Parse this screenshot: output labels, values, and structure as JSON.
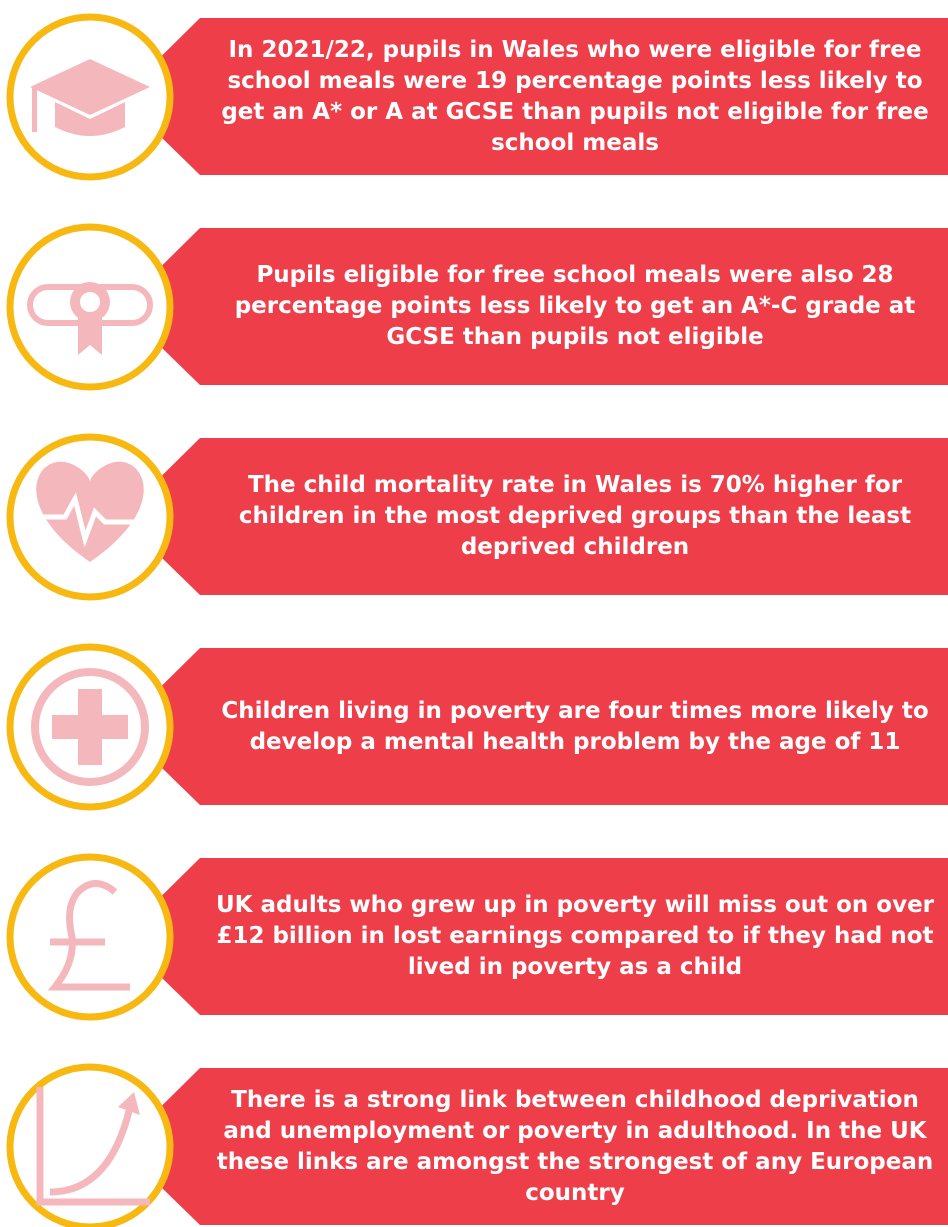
{
  "items": [
    {
      "text": "In 2021/22, pupils in Wales who were eligible for free school meals were 19 percentage points less likely to get an A* or A at GCSE than pupils not eligible for free school meals"
    },
    {
      "text": "Pupils eligible for free school meals were also 28 percentage points less likely to get an A*-C grade at GCSE than pupils not eligible"
    },
    {
      "text": "The child mortality rate in Wales is 70% higher for children in the most deprived groups than the least deprived children"
    },
    {
      "text": "Children living in poverty are four times more likely to develop a mental health problem by the age of 11"
    },
    {
      "text": "UK adults who grew up in poverty will miss out on over £12 billion in lost earnings compared to if they had not lived in poverty as a child"
    },
    {
      "text": "There is a strong link between childhood deprivation and unemployment or poverty in adulthood. In the UK these links are amongst the strongest of any European country"
    }
  ]
}
